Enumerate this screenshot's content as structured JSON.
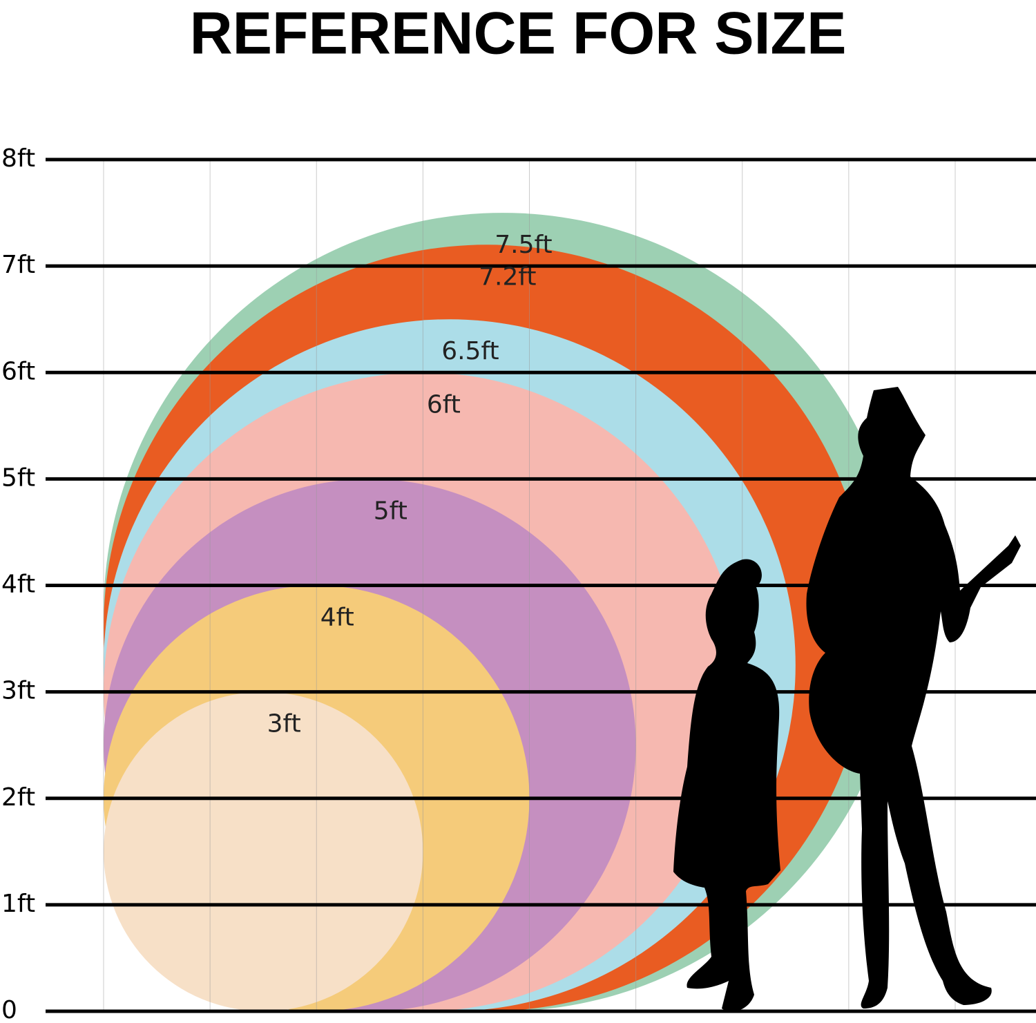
{
  "chart_data": {
    "type": "circles",
    "title": "REFERENCE FOR SIZE",
    "ylim": [
      0,
      8
    ],
    "yticks": [
      0,
      {
        "value": 1,
        "label": "1ft"
      },
      {
        "value": 2,
        "label": "2ft"
      },
      {
        "value": 3,
        "label": "3ft"
      },
      {
        "value": 4,
        "label": "4ft"
      },
      {
        "value": 5,
        "label": "5ft"
      },
      {
        "value": 6,
        "label": "6ft"
      },
      {
        "value": 7,
        "label": "7ft"
      },
      {
        "value": 8,
        "label": "8ft"
      }
    ],
    "values": [
      7.5,
      7.2,
      6.5,
      6,
      5,
      4,
      3
    ],
    "value_labels": [
      "7.5ft",
      "7.2ft",
      "6.5ft",
      "6ft",
      "5ft",
      "4ft",
      "3ft"
    ],
    "colors": [
      "#9dd0b3",
      "#e95c22",
      "#acdde8",
      "#f6b8b0",
      "#c58fc0",
      "#f5cb7a",
      "#f7e0c7"
    ]
  }
}
